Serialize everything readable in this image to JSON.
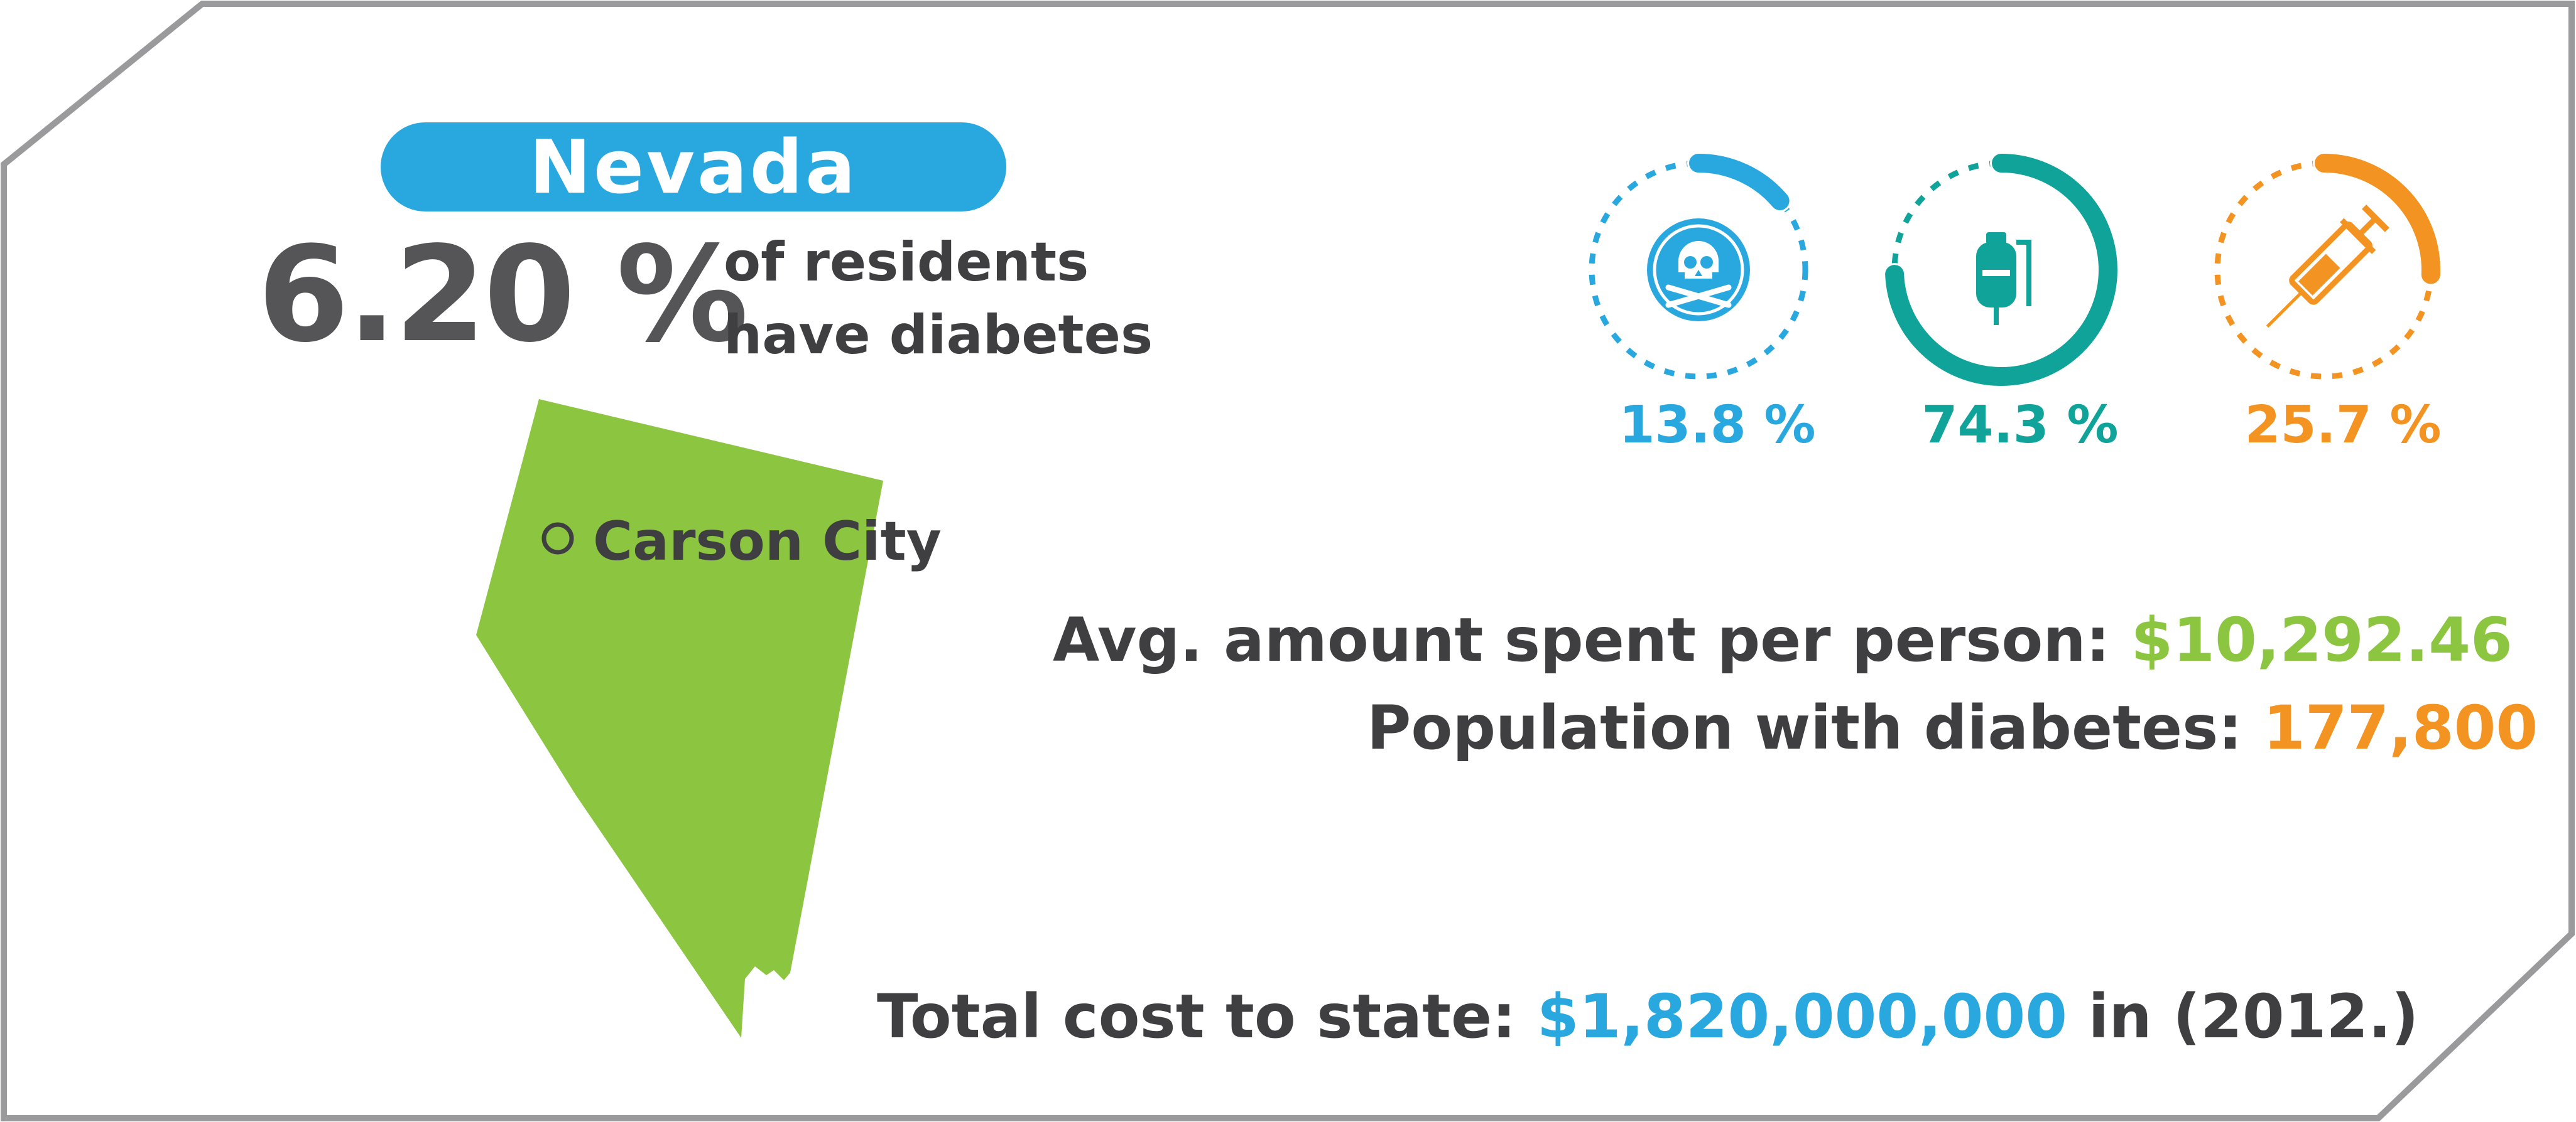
{
  "state": {
    "name": "Nevada",
    "percent": "6.20 %",
    "caption_line1": "of residents",
    "caption_line2": "have diabetes",
    "capital": "Carson City"
  },
  "indicators": [
    {
      "icon": "skull-crossbones-icon",
      "label": "13.8 %",
      "value": 13.8,
      "color": "#29a8e0"
    },
    {
      "icon": "iv-drip-icon",
      "label": "74.3 %",
      "value": 74.3,
      "color": "#10a39a"
    },
    {
      "icon": "syringe-icon",
      "label": "25.7 %",
      "value": 25.7,
      "color": "#f39321"
    }
  ],
  "stats": {
    "avg_label": "Avg. amount spent per person:",
    "avg_value": "$10,292.46",
    "pop_label": "Population with diabetes:",
    "pop_value": "177,800",
    "total_label": "Total cost to state:",
    "total_value": "$1,820,000,000",
    "total_suffix": "in (2012.)"
  },
  "colors": {
    "blue": "#29a8e0",
    "teal": "#10a39a",
    "orange": "#f39321",
    "green": "#8cc540",
    "text": "#3f3f42",
    "frame": "#9a9a9c"
  }
}
